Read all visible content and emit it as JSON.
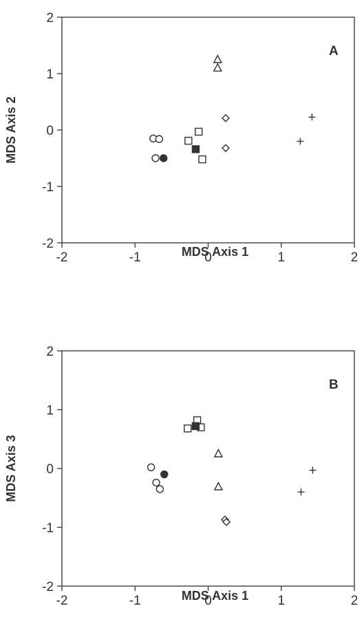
{
  "chart_data": [
    {
      "type": "scatter",
      "panel_label": "A",
      "xlabel": "MDS Axis 1",
      "ylabel": "MDS Axis 2",
      "xlim": [
        -2,
        2
      ],
      "ylim": [
        -2,
        2
      ],
      "xticks": [
        "-2",
        "-1",
        "0",
        "1",
        "2"
      ],
      "yticks": [
        "-2",
        "-1",
        "0",
        "1",
        "2"
      ],
      "grid": false,
      "groups": [
        {
          "marker": "circle-open",
          "points": [
            [
              -0.75,
              -0.15
            ],
            [
              -0.67,
              -0.16
            ],
            [
              -0.72,
              -0.5
            ]
          ]
        },
        {
          "marker": "circle-filled",
          "points": [
            [
              -0.61,
              -0.5
            ]
          ]
        },
        {
          "marker": "square-open",
          "points": [
            [
              -0.27,
              -0.19
            ],
            [
              -0.13,
              -0.03
            ],
            [
              -0.08,
              -0.52
            ]
          ]
        },
        {
          "marker": "square-filled",
          "points": [
            [
              -0.17,
              -0.34
            ]
          ]
        },
        {
          "marker": "triangle-open",
          "points": [
            [
              0.13,
              1.25
            ],
            [
              0.13,
              1.1
            ]
          ]
        },
        {
          "marker": "diamond-open",
          "points": [
            [
              0.24,
              0.21
            ],
            [
              0.24,
              -0.32
            ]
          ]
        },
        {
          "marker": "plus",
          "points": [
            [
              1.42,
              0.23
            ],
            [
              1.26,
              -0.2
            ]
          ]
        }
      ]
    },
    {
      "type": "scatter",
      "panel_label": "B",
      "xlabel": "MDS Axis 1",
      "ylabel": "MDS Axis 3",
      "xlim": [
        -2,
        2
      ],
      "ylim": [
        -2,
        2
      ],
      "xticks": [
        "-2",
        "-1",
        "0",
        "1",
        "2"
      ],
      "yticks": [
        "-2",
        "-1",
        "0",
        "1",
        "2"
      ],
      "grid": false,
      "groups": [
        {
          "marker": "circle-open",
          "points": [
            [
              -0.78,
              0.02
            ],
            [
              -0.71,
              -0.24
            ],
            [
              -0.66,
              -0.35
            ]
          ]
        },
        {
          "marker": "circle-filled",
          "points": [
            [
              -0.6,
              -0.1
            ]
          ]
        },
        {
          "marker": "square-open",
          "points": [
            [
              -0.28,
              0.68
            ],
            [
              -0.15,
              0.82
            ],
            [
              -0.1,
              0.7
            ]
          ]
        },
        {
          "marker": "square-filled",
          "points": [
            [
              -0.17,
              0.72
            ]
          ]
        },
        {
          "marker": "triangle-open",
          "points": [
            [
              0.14,
              0.25
            ],
            [
              0.14,
              -0.31
            ]
          ]
        },
        {
          "marker": "diamond-open",
          "points": [
            [
              0.23,
              -0.87
            ],
            [
              0.25,
              -0.91
            ]
          ]
        },
        {
          "marker": "plus",
          "points": [
            [
              1.43,
              -0.03
            ],
            [
              1.27,
              -0.4
            ]
          ]
        }
      ]
    }
  ]
}
